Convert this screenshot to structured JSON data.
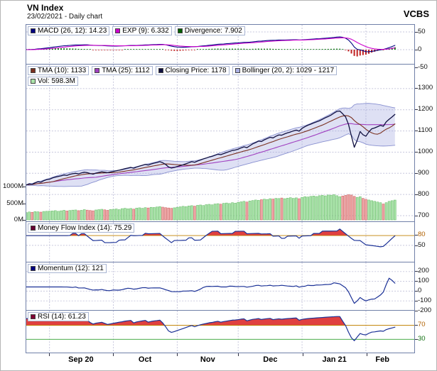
{
  "header": {
    "title": "VN Index",
    "subtitle": "23/02/2021 - Daily chart",
    "brand": "VCBS"
  },
  "legends": {
    "macd": {
      "label": "MACD (26, 12): 14.23",
      "color": "#000080"
    },
    "exp": {
      "label": "EXP (9): 6.332",
      "color": "#cc00cc"
    },
    "divergence": {
      "label": "Divergence: 7.902",
      "color": "#006000"
    },
    "tma10": {
      "label": "TMA (10): 1133",
      "color": "#7a3020"
    },
    "tma25": {
      "label": "TMA (25): 1112",
      "color": "#a040c0"
    },
    "close": {
      "label": "Closing Price: 1178",
      "color": "#101040"
    },
    "bollinger": {
      "label": "Bollinger (20, 2): 1029 - 1217",
      "color": "#aab0e4"
    },
    "vol": {
      "label": "Vol: 598.3M",
      "color": "#a9e3a9"
    },
    "mfi": {
      "label": "Money Flow Index (14): 75.29",
      "color": "#660033"
    },
    "momentum": {
      "label": "Momentum (12): 121",
      "color": "#000080"
    },
    "rsi": {
      "label": "RSI (14): 61.23",
      "color": "#800033"
    }
  },
  "colors": {
    "grid": "#c6c6dc",
    "frame": "#7080a8",
    "macd_line": "#000080",
    "signal_line": "#cc00cc",
    "hist_pos": "#007000",
    "hist_neg": "#c02020",
    "tma10": "#7a3020",
    "tma25": "#a040c0",
    "close": "#101040",
    "band_fill": "#9aa0dd",
    "band_edge": "#8890d0",
    "vol_up": "#a9e3a9",
    "vol_up_edge": "#6fbf6f",
    "vol_down": "#eda4a4",
    "vol_down_edge": "#cf6a6a",
    "oscillator": "#1a3096",
    "overbought_fill": "#e04040",
    "threshold_line": "#c08000",
    "oversold_line": "#30a030",
    "threshold_label": "#b06000",
    "oversold_label": "#107010",
    "axis_label": "#111111"
  },
  "chart_data": {
    "type": "line",
    "title": "VN Index",
    "date": "23/02/2021",
    "timeframe": "Daily chart",
    "x": {
      "n_points": 128,
      "month_start_indices": [
        8,
        30,
        52,
        73,
        95,
        117
      ],
      "month_labels": [
        "Sep 20",
        "Oct",
        "Nov",
        "Dec",
        "Jan 21",
        "Feb"
      ]
    },
    "close": [
      845,
      850,
      848,
      855,
      860,
      858,
      865,
      870,
      872,
      878,
      882,
      885,
      888,
      892,
      890,
      895,
      898,
      900,
      897,
      902,
      905,
      903,
      899,
      896,
      901,
      904,
      907,
      905,
      903,
      906,
      909,
      912,
      915,
      918,
      922,
      925,
      928,
      924,
      930,
      934,
      938,
      942,
      939,
      944,
      948,
      951,
      955,
      950,
      942,
      930,
      925,
      928,
      932,
      936,
      940,
      945,
      950,
      955,
      952,
      958,
      963,
      968,
      972,
      977,
      980,
      985,
      990,
      988,
      993,
      998,
      1003,
      1008,
      1010,
      1014,
      1020,
      1025,
      1021,
      1030,
      1039,
      1045,
      1052,
      1050,
      1058,
      1064,
      1070,
      1067,
      1075,
      1081,
      1080,
      1086,
      1091,
      1095,
      1100,
      1104,
      1099,
      1112,
      1120,
      1127,
      1132,
      1138,
      1143,
      1148,
      1155,
      1162,
      1168,
      1175,
      1184,
      1192,
      1194,
      1181,
      1166,
      1131,
      1076,
      1023,
      1056,
      1097,
      1082,
      1075,
      1095,
      1110,
      1114,
      1120,
      1126,
      1122,
      1143,
      1155,
      1166,
      1178
    ],
    "volume_m": [
      220,
      240,
      230,
      250,
      245,
      235,
      255,
      260,
      265,
      270,
      280,
      260,
      275,
      290,
      270,
      285,
      295,
      300,
      280,
      290,
      310,
      295,
      285,
      275,
      300,
      310,
      320,
      305,
      290,
      315,
      320,
      330,
      310,
      340,
      350,
      335,
      345,
      325,
      355,
      365,
      350,
      370,
      360,
      380,
      375,
      390,
      400,
      385,
      370,
      360,
      350,
      365,
      380,
      395,
      410,
      400,
      420,
      430,
      415,
      440,
      450,
      435,
      460,
      470,
      455,
      480,
      490,
      475,
      500,
      510,
      495,
      520,
      505,
      530,
      545,
      560,
      540,
      570,
      585,
      600,
      590,
      610,
      625,
      615,
      640,
      630,
      650,
      645,
      660,
      640,
      655,
      670,
      650,
      665,
      640,
      680,
      700,
      690,
      710,
      720,
      705,
      730,
      740,
      725,
      750,
      745,
      760,
      730,
      700,
      720,
      740,
      760,
      750,
      710,
      680,
      700,
      650,
      620,
      600,
      580,
      560,
      540,
      520,
      480,
      520,
      560,
      580,
      598
    ],
    "axes": {
      "macd_ticks": [
        "50",
        "0",
        "-50"
      ],
      "price_ticks": [
        "1300",
        "1200",
        "1100",
        "1000",
        "900",
        "800",
        "700"
      ],
      "volume_ticks": [
        "1000M",
        "500M",
        "0M"
      ],
      "mfi_ticks": [
        "80",
        "50"
      ],
      "momentum_ticks": [
        "200",
        "100",
        "0",
        "-100",
        "-200"
      ],
      "rsi_ticks": [
        "70",
        "30"
      ]
    },
    "panels": [
      {
        "id": "macd",
        "y_range": [
          -50,
          50
        ],
        "indicators": [
          {
            "name": "MACD",
            "params": "26, 12",
            "value": 14.23
          },
          {
            "name": "EXP",
            "params": "9",
            "value": 6.332
          },
          {
            "name": "Divergence",
            "params": "",
            "value": 7.902
          }
        ]
      },
      {
        "id": "price_volume",
        "y_range": [
          700,
          1300
        ],
        "indicators": [
          {
            "name": "TMA",
            "params": "10",
            "value": 1133
          },
          {
            "name": "TMA",
            "params": "25",
            "value": 1112
          },
          {
            "name": "Closing Price",
            "params": "",
            "value": 1178
          },
          {
            "name": "Bollinger",
            "params": "20, 2",
            "value": "1029 - 1217"
          },
          {
            "name": "Vol",
            "params": "",
            "value": "598.3M"
          }
        ]
      },
      {
        "id": "mfi",
        "y_range": [
          0,
          100
        ],
        "overbought": 80,
        "indicators": [
          {
            "name": "Money Flow Index",
            "params": "14",
            "value": 75.29
          }
        ]
      },
      {
        "id": "momentum",
        "y_range": [
          -200,
          200
        ],
        "indicators": [
          {
            "name": "Momentum",
            "params": "12",
            "value": 121
          }
        ]
      },
      {
        "id": "rsi",
        "y_range": [
          0,
          100
        ],
        "overbought": 70,
        "oversold": 30,
        "indicators": [
          {
            "name": "RSI",
            "params": "14",
            "value": 61.23
          }
        ]
      }
    ]
  }
}
